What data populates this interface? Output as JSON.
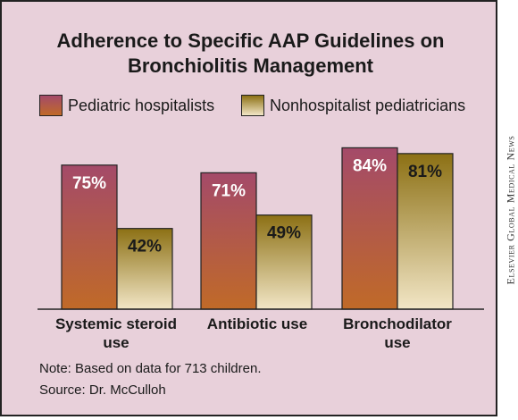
{
  "colors": {
    "hospitalist_top": "#a44a69",
    "hospitalist_bottom": "#c06a28",
    "nonhospitalist_top": "#8c7014",
    "nonhospitalist_bottom": "#f2e6c6",
    "background": "#e8d0da"
  },
  "chart_data": {
    "type": "bar",
    "title": "Adherence to Specific AAP Guidelines on Bronchiolitis Management",
    "categories": [
      "Systemic steroid use",
      "Antibiotic use",
      "Bronchodilator use"
    ],
    "series": [
      {
        "name": "Pediatric hospitalists",
        "values": [
          75,
          71,
          84
        ],
        "labels": [
          "75%",
          "71%",
          "84%"
        ]
      },
      {
        "name": "Nonhospitalist pediatricians",
        "values": [
          42,
          49,
          81
        ],
        "labels": [
          "42%",
          "49%",
          "81%"
        ]
      }
    ],
    "ylim": [
      0,
      100
    ],
    "legend": "top",
    "grid": false
  },
  "notes": {
    "note": "Note: Based on data for 713 children.",
    "source": "Source: Dr. McCulloh"
  },
  "watermark": "Elsevier Global Medical News"
}
